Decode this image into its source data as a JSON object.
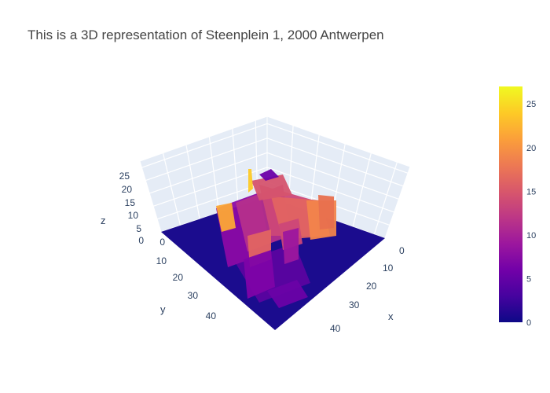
{
  "chart_data": {
    "type": "surface3d",
    "title": "This is a 3D representation of Steenplein 1, 2000 Antwerpen",
    "x_axis": {
      "title": "x",
      "ticks": [
        "0",
        "10",
        "20",
        "30",
        "40"
      ],
      "range": [
        0,
        50
      ]
    },
    "y_axis": {
      "title": "y",
      "ticks": [
        "0",
        "10",
        "20",
        "30",
        "40"
      ],
      "range": [
        0,
        50
      ]
    },
    "z_axis": {
      "title": "z",
      "ticks": [
        "0",
        "5",
        "10",
        "15",
        "20",
        "25"
      ],
      "range": [
        0,
        27
      ]
    },
    "colorbar": {
      "ticks": [
        "0",
        "5",
        "10",
        "15",
        "20",
        "25"
      ],
      "range": [
        0,
        27
      ],
      "colorscale": "plasma"
    },
    "colorscale_stops": [
      "#0d0887",
      "#46039f",
      "#7201a8",
      "#9c179e",
      "#bd3786",
      "#d8576b",
      "#ed7953",
      "#fb9f3a",
      "#fdca26",
      "#f0f921"
    ],
    "grid": true,
    "background": "#e5ecf6",
    "plot_bgcolor": "#ffffff"
  }
}
